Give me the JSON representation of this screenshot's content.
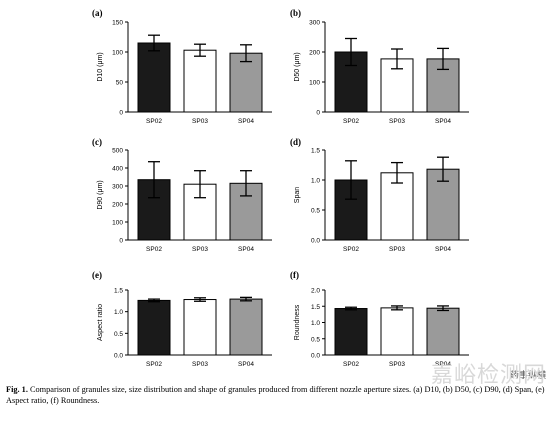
{
  "chart_data": [
    {
      "panel": "(a)",
      "type": "bar",
      "categories": [
        "SP02",
        "SP03",
        "SP04"
      ],
      "values": [
        115,
        103,
        98
      ],
      "errors": [
        13,
        10,
        14
      ],
      "ylabel": "D10 (μm)",
      "ylim": [
        0,
        150
      ],
      "yticks": [
        0,
        50,
        100,
        150
      ],
      "bar_colors": [
        "#1a1a1a",
        "#ffffff",
        "#9a9a9a"
      ]
    },
    {
      "panel": "(b)",
      "type": "bar",
      "categories": [
        "SP02",
        "SP03",
        "SP04"
      ],
      "values": [
        200,
        177,
        177
      ],
      "errors": [
        45,
        33,
        35
      ],
      "ylabel": "D50 (μm)",
      "ylim": [
        0,
        300
      ],
      "yticks": [
        0,
        100,
        200,
        300
      ],
      "bar_colors": [
        "#1a1a1a",
        "#ffffff",
        "#9a9a9a"
      ]
    },
    {
      "panel": "(c)",
      "type": "bar",
      "categories": [
        "SP02",
        "SP03",
        "SP04"
      ],
      "values": [
        335,
        310,
        315
      ],
      "errors": [
        100,
        75,
        70
      ],
      "ylabel": "D90 (μm)",
      "ylim": [
        0,
        500
      ],
      "yticks": [
        0,
        100,
        200,
        300,
        400,
        500
      ],
      "bar_colors": [
        "#1a1a1a",
        "#ffffff",
        "#9a9a9a"
      ]
    },
    {
      "panel": "(d)",
      "type": "bar",
      "categories": [
        "SP02",
        "SP03",
        "SP04"
      ],
      "values": [
        1.0,
        1.12,
        1.18
      ],
      "errors": [
        0.32,
        0.17,
        0.2
      ],
      "ylabel": "Span",
      "ylim": [
        0,
        1.5
      ],
      "yticks": [
        0.0,
        0.5,
        1.0,
        1.5
      ],
      "bar_colors": [
        "#1a1a1a",
        "#ffffff",
        "#9a9a9a"
      ]
    },
    {
      "panel": "(e)",
      "type": "bar",
      "categories": [
        "SP02",
        "SP03",
        "SP04"
      ],
      "values": [
        1.26,
        1.28,
        1.29
      ],
      "errors": [
        0.03,
        0.04,
        0.04
      ],
      "ylabel": "Aspect ratio",
      "ylim": [
        0,
        1.5
      ],
      "yticks": [
        0.0,
        0.5,
        1.0,
        1.5
      ],
      "bar_colors": [
        "#1a1a1a",
        "#ffffff",
        "#9a9a9a"
      ]
    },
    {
      "panel": "(f)",
      "type": "bar",
      "categories": [
        "SP02",
        "SP03",
        "SP04"
      ],
      "values": [
        1.43,
        1.45,
        1.44
      ],
      "errors": [
        0.04,
        0.06,
        0.07
      ],
      "ylabel": "Roundness",
      "ylim": [
        0,
        2.0
      ],
      "yticks": [
        0.0,
        0.5,
        1.0,
        1.5,
        2.0
      ],
      "bar_colors": [
        "#1a1a1a",
        "#ffffff",
        "#9a9a9a"
      ]
    }
  ],
  "caption": {
    "lead": "Fig. 1.",
    "text": "Comparison of granules size, size distribution and shape of granules produced from different nozzle aperture sizes. (a) D10, (b) D50, (c) D90, (d) Span, (e) Aspect ratio, (f) Roundness."
  },
  "watermark": "嘉峪检测网",
  "watermark2": "药事纵横"
}
